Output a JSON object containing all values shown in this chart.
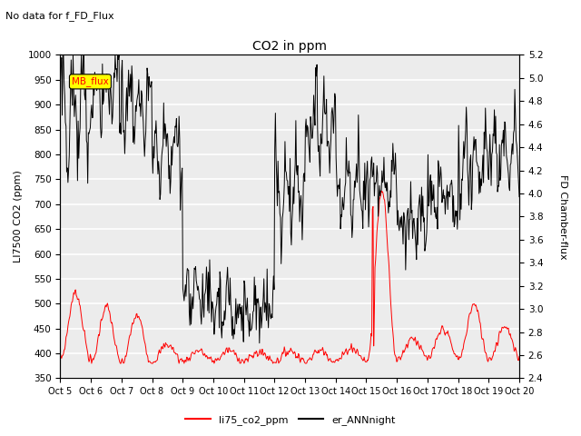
{
  "title": "CO2 in ppm",
  "subtitle": "No data for f_FD_Flux",
  "ylabel_left": "LI7500 CO2 (ppm)",
  "ylabel_right": "FD Chamber-flux",
  "ylim_left": [
    350,
    1000
  ],
  "ylim_right": [
    2.4,
    5.2
  ],
  "yticks_left": [
    350,
    400,
    450,
    500,
    550,
    600,
    650,
    700,
    750,
    800,
    850,
    900,
    950,
    1000
  ],
  "yticks_right": [
    2.4,
    2.6,
    2.8,
    3.0,
    3.2,
    3.4,
    3.6,
    3.8,
    4.0,
    4.2,
    4.4,
    4.6,
    4.8,
    5.0,
    5.2
  ],
  "xtick_labels": [
    "Oct 5",
    "Oct 6",
    "Oct 7",
    "Oct 8",
    "Oct 9",
    "Oct 10",
    "Oct 11",
    "Oct 12",
    "Oct 13",
    "Oct 14",
    "Oct 15",
    "Oct 16",
    "Oct 17",
    "Oct 18",
    "Oct 19",
    "Oct 20"
  ],
  "line1_color": "#ff0000",
  "line2_color": "#000000",
  "legend_label1": "li75_co2_ppm",
  "legend_label2": "er_ANNnight",
  "mb_flux_box_color": "#ffff00",
  "mb_flux_text_color": "#ff0000",
  "plot_bg_color": "#ececec",
  "grid_color": "#ffffff"
}
